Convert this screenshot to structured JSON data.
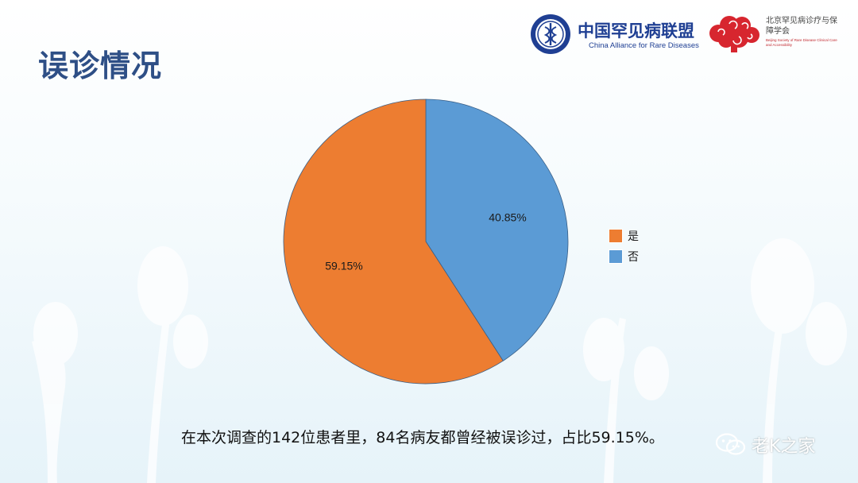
{
  "slide": {
    "title": "误诊情况",
    "caption": "在本次调查的142位患者里，84名病友都曾经被误诊过，占比59.15%。"
  },
  "logos": {
    "china_alliance": {
      "name": "中国罕见病联盟",
      "english": "China Alliance for Rare Diseases",
      "icon": "caduceus-seal-icon",
      "color": "#1f3f93"
    },
    "beijing_society": {
      "name": "北京罕见病诊疗与保障学会",
      "english": "Beijing Society of Rare Disease Clinical Care and Accessibility",
      "icon": "cloud-swirl-icon",
      "color": "#d7262f"
    }
  },
  "watermark": {
    "text": "老K之家",
    "icon": "wechat-icon"
  },
  "chart_data": {
    "type": "pie",
    "slices": [
      {
        "label": "是",
        "value": 59.15,
        "display": "59.15%",
        "color": "#ed7d31"
      },
      {
        "label": "否",
        "value": 40.85,
        "display": "40.85%",
        "color": "#5b9bd5"
      }
    ],
    "legend_position": "right",
    "start_angle": "top, clockwise from 否"
  }
}
